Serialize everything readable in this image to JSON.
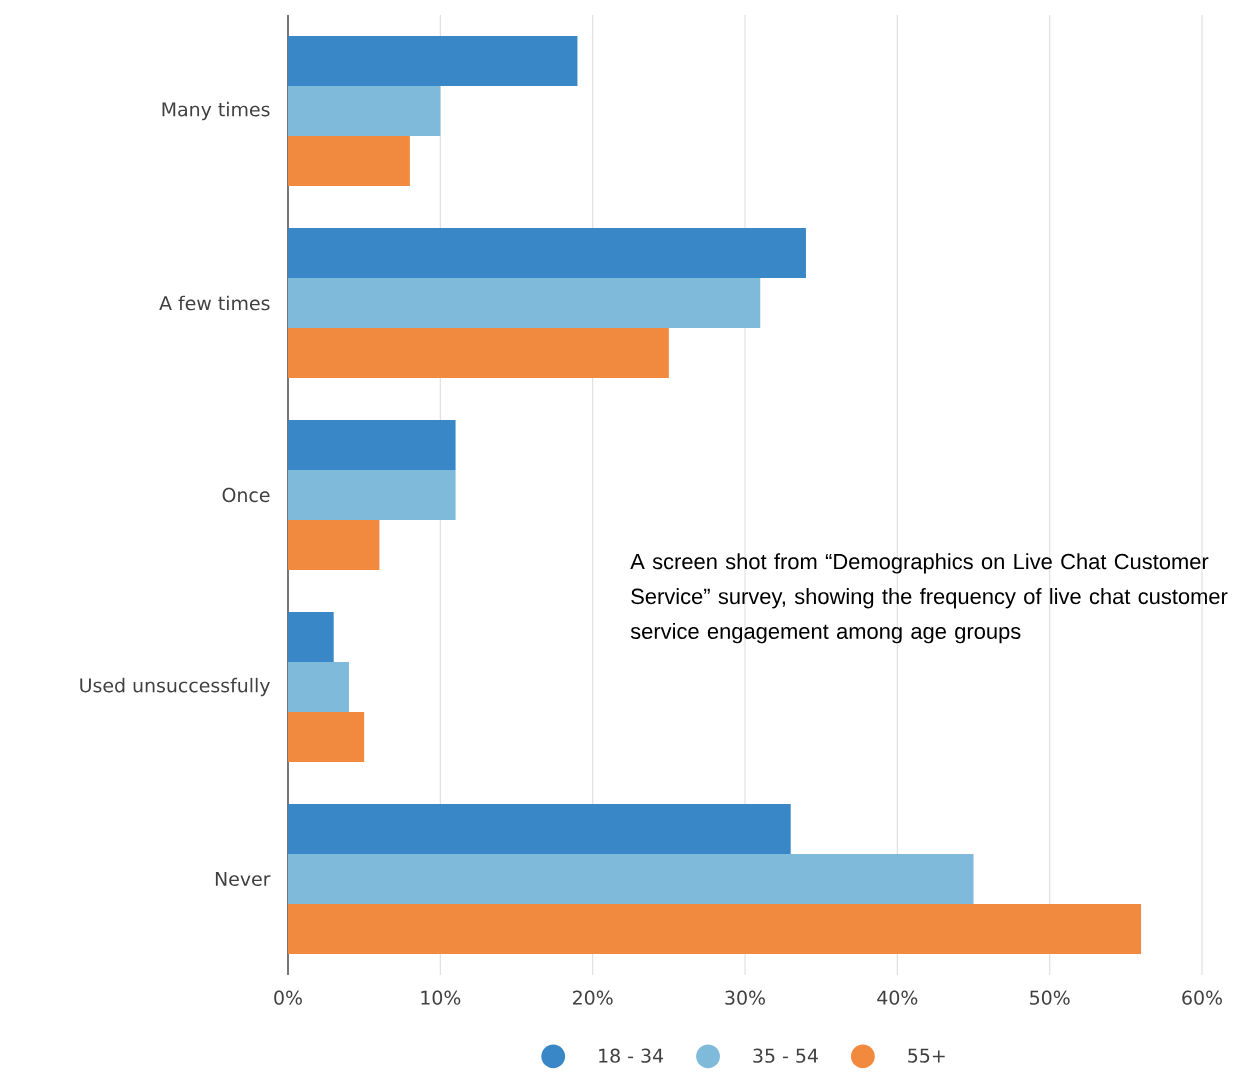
{
  "chart_data": {
    "type": "bar",
    "orientation": "horizontal",
    "categories": [
      "Many times",
      "A few times",
      "Once",
      "Used unsuccessfully",
      "Never"
    ],
    "series": [
      {
        "name": "18 - 34",
        "color": "#3a87c7",
        "values": [
          19,
          34,
          11,
          3,
          33
        ]
      },
      {
        "name": "35 - 54",
        "color": "#7fbadb",
        "values": [
          10,
          31,
          11,
          4,
          45
        ]
      },
      {
        "name": "55+",
        "color": "#f18a3e",
        "values": [
          8,
          25,
          6,
          5,
          56
        ]
      }
    ],
    "xlim": [
      0,
      60
    ],
    "xticks": [
      {
        "value": 0,
        "label": "0%"
      },
      {
        "value": 10,
        "label": "10%"
      },
      {
        "value": 20,
        "label": "20%"
      },
      {
        "value": 30,
        "label": "30%"
      },
      {
        "value": 40,
        "label": "40%"
      },
      {
        "value": 50,
        "label": "50%"
      },
      {
        "value": 60,
        "label": "60%"
      }
    ],
    "grid": "x",
    "legend": "bottom",
    "annotations": [
      "A screen shot from “Demographics on Live Chat Customer Service” survey, showing the frequency of live chat customer service engagement among age groups"
    ]
  }
}
